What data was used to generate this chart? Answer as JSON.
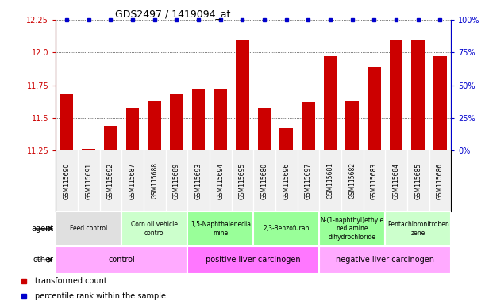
{
  "title": "GDS2497 / 1419094_at",
  "samples": [
    "GSM115690",
    "GSM115691",
    "GSM115692",
    "GSM115687",
    "GSM115688",
    "GSM115689",
    "GSM115693",
    "GSM115694",
    "GSM115695",
    "GSM115680",
    "GSM115696",
    "GSM115697",
    "GSM115681",
    "GSM115682",
    "GSM115683",
    "GSM115684",
    "GSM115685",
    "GSM115686"
  ],
  "values": [
    11.68,
    11.26,
    11.44,
    11.57,
    11.63,
    11.68,
    11.72,
    11.72,
    12.09,
    11.58,
    11.42,
    11.62,
    11.97,
    11.63,
    11.89,
    12.09,
    12.1,
    11.97
  ],
  "ymin": 11.25,
  "ymax": 12.25,
  "yticks": [
    11.25,
    11.5,
    11.75,
    12.0,
    12.25
  ],
  "right_yticks": [
    0,
    25,
    50,
    75,
    100
  ],
  "bar_color": "#cc0000",
  "dot_color": "#0000cc",
  "agent_groups": [
    {
      "label": "Feed control",
      "start": 0,
      "end": 3,
      "color": "#e0e0e0"
    },
    {
      "label": "Corn oil vehicle\ncontrol",
      "start": 3,
      "end": 6,
      "color": "#ccffcc"
    },
    {
      "label": "1,5-Naphthalenedia\nmine",
      "start": 6,
      "end": 9,
      "color": "#99ff99"
    },
    {
      "label": "2,3-Benzofuran",
      "start": 9,
      "end": 12,
      "color": "#99ff99"
    },
    {
      "label": "N-(1-naphthyl)ethyle\nnediamine\ndihydrochloride",
      "start": 12,
      "end": 15,
      "color": "#99ff99"
    },
    {
      "label": "Pentachloronitroben\nzene",
      "start": 15,
      "end": 18,
      "color": "#ccffcc"
    }
  ],
  "other_groups": [
    {
      "label": "control",
      "start": 0,
      "end": 6,
      "color": "#ffaaff"
    },
    {
      "label": "positive liver carcinogen",
      "start": 6,
      "end": 12,
      "color": "#ff77ff"
    },
    {
      "label": "negative liver carcinogen",
      "start": 12,
      "end": 18,
      "color": "#ffaaff"
    }
  ],
  "legend_items": [
    {
      "label": "transformed count",
      "color": "#cc0000"
    },
    {
      "label": "percentile rank within the sample",
      "color": "#0000cc"
    }
  ]
}
